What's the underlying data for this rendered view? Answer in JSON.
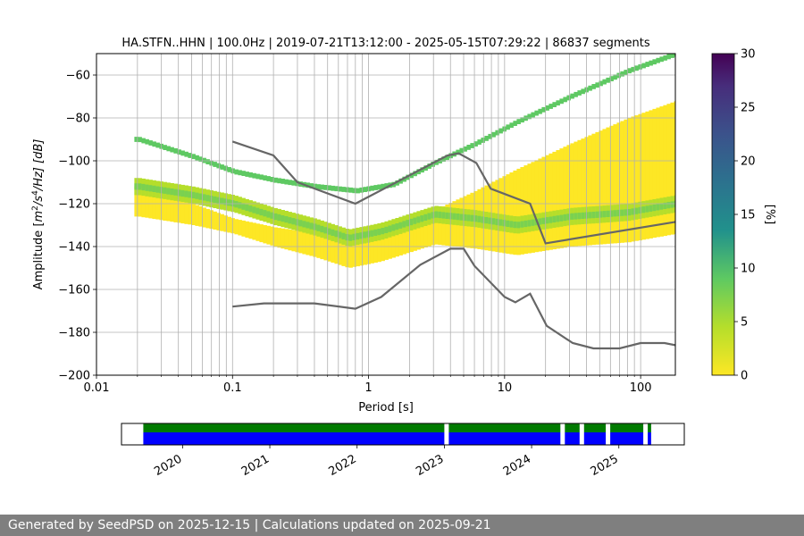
{
  "chart_data": [
    {
      "type": "heatmap",
      "title": "HA.STFN..HHN | 100.0Hz | 2019-07-21T13:12:00 - 2025-05-15T07:29:22 | 86837 segments",
      "xlabel": "Period [s]",
      "ylabel_parts": [
        "Amplitude [",
        "m",
        "2",
        "/s",
        "4",
        "/Hz] [dB]"
      ],
      "x_scale": "log",
      "xlim": [
        0.01,
        180
      ],
      "ylim": [
        -200,
        -50
      ],
      "x_ticks": [
        "0.01",
        "0.1",
        "1",
        "10",
        "100"
      ],
      "y_ticks": [
        "−200",
        "−180",
        "−160",
        "−140",
        "−120",
        "−100",
        "−80",
        "−60"
      ],
      "grid": true,
      "colorbar": {
        "label": "[%]",
        "min": 0,
        "max": 30,
        "ticks": [
          "0",
          "5",
          "10",
          "15",
          "20",
          "25",
          "30"
        ],
        "colormap": "viridis_r"
      },
      "series": [
        {
          "kind": "reference-line",
          "points": [
            [
              0.1,
              -91
            ],
            [
              0.2,
              -97.5
            ],
            [
              0.3,
              -110
            ],
            [
              0.8,
              -120
            ],
            [
              3.8,
              -97.5
            ],
            [
              4.6,
              -96.5
            ],
            [
              6.2,
              -101
            ],
            [
              7.9,
              -113
            ],
            [
              15.4,
              -120
            ],
            [
              20,
              -138.5
            ],
            [
              180,
              -128.5
            ]
          ]
        },
        {
          "kind": "reference-line",
          "points": [
            [
              0.1,
              -168
            ],
            [
              0.17,
              -166.5
            ],
            [
              0.4,
              -166.5
            ],
            [
              0.8,
              -169
            ],
            [
              1.24,
              -163.5
            ],
            [
              2.4,
              -148.5
            ],
            [
              4,
              -141
            ],
            [
              5,
              -141
            ],
            [
              6,
              -149
            ],
            [
              10,
              -163.5
            ],
            [
              12,
              -166
            ],
            [
              15.4,
              -162
            ],
            [
              20.4,
              -177
            ],
            [
              31.7,
              -185
            ],
            [
              45,
              -187.5
            ],
            [
              70,
              -187.5
            ],
            [
              100,
              -185
            ],
            [
              150,
              -185
            ],
            [
              180,
              -186
            ]
          ]
        },
        {
          "kind": "density-band",
          "name_hint": "mode",
          "points": [
            [
              0.02,
              -112
            ],
            [
              0.05,
              -116
            ],
            [
              0.1,
              -120
            ],
            [
              0.2,
              -126
            ],
            [
              0.4,
              -131
            ],
            [
              0.7,
              -136
            ],
            [
              1.2,
              -133
            ],
            [
              3,
              -125
            ],
            [
              6,
              -127
            ],
            [
              12,
              -130
            ],
            [
              30,
              -126
            ],
            [
              80,
              -124
            ],
            [
              180,
              -120
            ]
          ]
        },
        {
          "kind": "density-band",
          "name_hint": "upper",
          "points": [
            [
              0.02,
              -90
            ],
            [
              0.05,
              -98
            ],
            [
              0.1,
              -105
            ],
            [
              0.2,
              -109
            ],
            [
              0.4,
              -112
            ],
            [
              0.8,
              -114
            ],
            [
              1.5,
              -111
            ],
            [
              3,
              -101
            ],
            [
              6,
              -92
            ],
            [
              12,
              -82
            ],
            [
              30,
              -70
            ],
            [
              80,
              -58
            ],
            [
              180,
              -50
            ]
          ]
        }
      ]
    },
    {
      "type": "timeline",
      "x_ticks": [
        "2020",
        "2021",
        "2022",
        "2023",
        "2024",
        "2025"
      ],
      "x_tick_years": [
        2020,
        2021,
        2022,
        2023,
        2024,
        2025
      ],
      "xlim_years": [
        2019.3,
        2025.75
      ],
      "span_years": [
        2019.55,
        2025.37
      ],
      "gaps_years": [
        2023.0,
        2024.33,
        2024.55,
        2024.85,
        2025.28
      ],
      "colors": {
        "coverage": "#007a00",
        "data": "#0000ff",
        "gap": "#ffffff"
      }
    }
  ],
  "footer": "Generated by SeedPSD on 2025-12-15 | Calculations updated on 2025-09-21"
}
